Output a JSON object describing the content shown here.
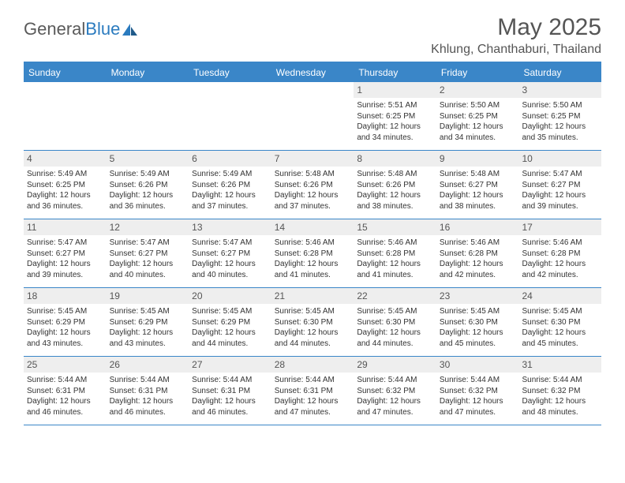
{
  "brand": {
    "part1": "General",
    "part2": "Blue"
  },
  "title": "May 2025",
  "location": "Khlung, Chanthaburi, Thailand",
  "colors": {
    "header_bg": "#3a86c8",
    "header_text": "#ffffff",
    "daynum_bg": "#eeeeee",
    "text": "#333333",
    "logo_blue": "#2b7bbf"
  },
  "day_labels": [
    "Sunday",
    "Monday",
    "Tuesday",
    "Wednesday",
    "Thursday",
    "Friday",
    "Saturday"
  ],
  "weeks": [
    [
      {
        "n": "",
        "sr": "",
        "ss": "",
        "dl": ""
      },
      {
        "n": "",
        "sr": "",
        "ss": "",
        "dl": ""
      },
      {
        "n": "",
        "sr": "",
        "ss": "",
        "dl": ""
      },
      {
        "n": "",
        "sr": "",
        "ss": "",
        "dl": ""
      },
      {
        "n": "1",
        "sr": "Sunrise: 5:51 AM",
        "ss": "Sunset: 6:25 PM",
        "dl": "Daylight: 12 hours and 34 minutes."
      },
      {
        "n": "2",
        "sr": "Sunrise: 5:50 AM",
        "ss": "Sunset: 6:25 PM",
        "dl": "Daylight: 12 hours and 34 minutes."
      },
      {
        "n": "3",
        "sr": "Sunrise: 5:50 AM",
        "ss": "Sunset: 6:25 PM",
        "dl": "Daylight: 12 hours and 35 minutes."
      }
    ],
    [
      {
        "n": "4",
        "sr": "Sunrise: 5:49 AM",
        "ss": "Sunset: 6:25 PM",
        "dl": "Daylight: 12 hours and 36 minutes."
      },
      {
        "n": "5",
        "sr": "Sunrise: 5:49 AM",
        "ss": "Sunset: 6:26 PM",
        "dl": "Daylight: 12 hours and 36 minutes."
      },
      {
        "n": "6",
        "sr": "Sunrise: 5:49 AM",
        "ss": "Sunset: 6:26 PM",
        "dl": "Daylight: 12 hours and 37 minutes."
      },
      {
        "n": "7",
        "sr": "Sunrise: 5:48 AM",
        "ss": "Sunset: 6:26 PM",
        "dl": "Daylight: 12 hours and 37 minutes."
      },
      {
        "n": "8",
        "sr": "Sunrise: 5:48 AM",
        "ss": "Sunset: 6:26 PM",
        "dl": "Daylight: 12 hours and 38 minutes."
      },
      {
        "n": "9",
        "sr": "Sunrise: 5:48 AM",
        "ss": "Sunset: 6:27 PM",
        "dl": "Daylight: 12 hours and 38 minutes."
      },
      {
        "n": "10",
        "sr": "Sunrise: 5:47 AM",
        "ss": "Sunset: 6:27 PM",
        "dl": "Daylight: 12 hours and 39 minutes."
      }
    ],
    [
      {
        "n": "11",
        "sr": "Sunrise: 5:47 AM",
        "ss": "Sunset: 6:27 PM",
        "dl": "Daylight: 12 hours and 39 minutes."
      },
      {
        "n": "12",
        "sr": "Sunrise: 5:47 AM",
        "ss": "Sunset: 6:27 PM",
        "dl": "Daylight: 12 hours and 40 minutes."
      },
      {
        "n": "13",
        "sr": "Sunrise: 5:47 AM",
        "ss": "Sunset: 6:27 PM",
        "dl": "Daylight: 12 hours and 40 minutes."
      },
      {
        "n": "14",
        "sr": "Sunrise: 5:46 AM",
        "ss": "Sunset: 6:28 PM",
        "dl": "Daylight: 12 hours and 41 minutes."
      },
      {
        "n": "15",
        "sr": "Sunrise: 5:46 AM",
        "ss": "Sunset: 6:28 PM",
        "dl": "Daylight: 12 hours and 41 minutes."
      },
      {
        "n": "16",
        "sr": "Sunrise: 5:46 AM",
        "ss": "Sunset: 6:28 PM",
        "dl": "Daylight: 12 hours and 42 minutes."
      },
      {
        "n": "17",
        "sr": "Sunrise: 5:46 AM",
        "ss": "Sunset: 6:28 PM",
        "dl": "Daylight: 12 hours and 42 minutes."
      }
    ],
    [
      {
        "n": "18",
        "sr": "Sunrise: 5:45 AM",
        "ss": "Sunset: 6:29 PM",
        "dl": "Daylight: 12 hours and 43 minutes."
      },
      {
        "n": "19",
        "sr": "Sunrise: 5:45 AM",
        "ss": "Sunset: 6:29 PM",
        "dl": "Daylight: 12 hours and 43 minutes."
      },
      {
        "n": "20",
        "sr": "Sunrise: 5:45 AM",
        "ss": "Sunset: 6:29 PM",
        "dl": "Daylight: 12 hours and 44 minutes."
      },
      {
        "n": "21",
        "sr": "Sunrise: 5:45 AM",
        "ss": "Sunset: 6:30 PM",
        "dl": "Daylight: 12 hours and 44 minutes."
      },
      {
        "n": "22",
        "sr": "Sunrise: 5:45 AM",
        "ss": "Sunset: 6:30 PM",
        "dl": "Daylight: 12 hours and 44 minutes."
      },
      {
        "n": "23",
        "sr": "Sunrise: 5:45 AM",
        "ss": "Sunset: 6:30 PM",
        "dl": "Daylight: 12 hours and 45 minutes."
      },
      {
        "n": "24",
        "sr": "Sunrise: 5:45 AM",
        "ss": "Sunset: 6:30 PM",
        "dl": "Daylight: 12 hours and 45 minutes."
      }
    ],
    [
      {
        "n": "25",
        "sr": "Sunrise: 5:44 AM",
        "ss": "Sunset: 6:31 PM",
        "dl": "Daylight: 12 hours and 46 minutes."
      },
      {
        "n": "26",
        "sr": "Sunrise: 5:44 AM",
        "ss": "Sunset: 6:31 PM",
        "dl": "Daylight: 12 hours and 46 minutes."
      },
      {
        "n": "27",
        "sr": "Sunrise: 5:44 AM",
        "ss": "Sunset: 6:31 PM",
        "dl": "Daylight: 12 hours and 46 minutes."
      },
      {
        "n": "28",
        "sr": "Sunrise: 5:44 AM",
        "ss": "Sunset: 6:31 PM",
        "dl": "Daylight: 12 hours and 47 minutes."
      },
      {
        "n": "29",
        "sr": "Sunrise: 5:44 AM",
        "ss": "Sunset: 6:32 PM",
        "dl": "Daylight: 12 hours and 47 minutes."
      },
      {
        "n": "30",
        "sr": "Sunrise: 5:44 AM",
        "ss": "Sunset: 6:32 PM",
        "dl": "Daylight: 12 hours and 47 minutes."
      },
      {
        "n": "31",
        "sr": "Sunrise: 5:44 AM",
        "ss": "Sunset: 6:32 PM",
        "dl": "Daylight: 12 hours and 48 minutes."
      }
    ]
  ]
}
